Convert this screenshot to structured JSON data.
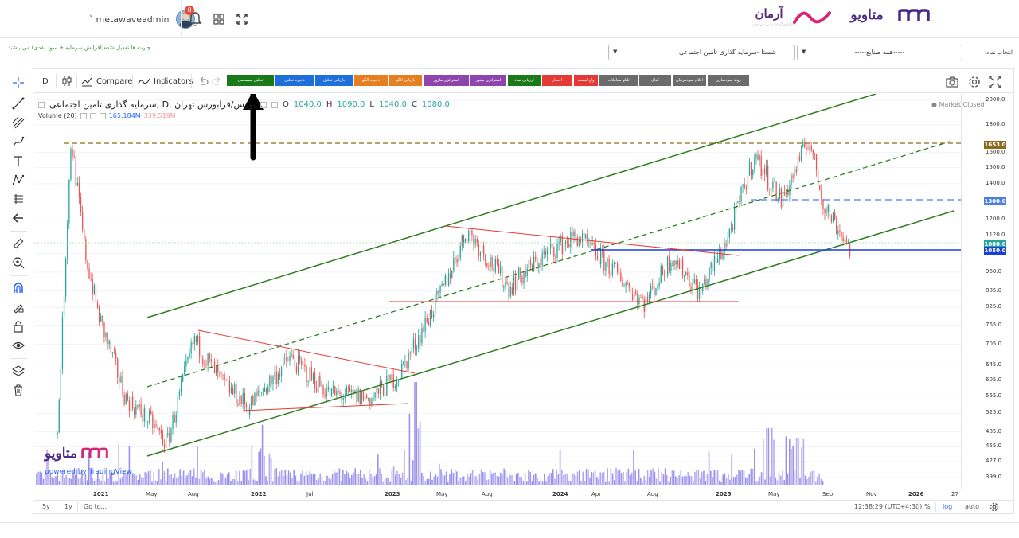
{
  "header": {
    "username": "metawaveadmin",
    "notification_count": "0",
    "brand_armaan": "آرمان",
    "brand_armaan_sub": "کارگزاری آرمان تدبیر نقش جهان",
    "brand_metaweave": "متاویو"
  },
  "subheader": {
    "note": "چارت ها تعدیل شده(افزایش سرمایه + سود نقدی) می باشند",
    "select_label": "انتخاب نماد:",
    "industry_value": "-----همه صنایع-----",
    "symbol_value": "شستا -سرمایه گذاری تامین اجتماعی"
  },
  "toolbar": {
    "interval": "D",
    "compare": "Compare",
    "indicators": "Indicators",
    "custom_buttons": [
      {
        "label": "تحلیل سیستمی",
        "color": "#1a7a1a"
      },
      {
        "label": "ذخیره تحلیل",
        "color": "#1e6fd9"
      },
      {
        "label": "بازیابی تحلیل",
        "color": "#1e6fd9"
      },
      {
        "label": "ذخیره الگو",
        "color": "#e67e22"
      },
      {
        "label": "بازیابی الگو",
        "color": "#e67e22"
      },
      {
        "label": "استراتژی ماژور",
        "color": "#8e44ad"
      },
      {
        "label": "استراتژی مینور",
        "color": "#8e44ad"
      },
      {
        "label": "ارزیابی نماد",
        "color": "#1a7a1a"
      },
      {
        "label": "اخطار",
        "color": "#e53935"
      },
      {
        "label": "واچ لیست",
        "color": "#e53935"
      },
      {
        "label": "تابلو معاملات",
        "color": "#6b6b6b"
      },
      {
        "label": "کدال",
        "color": "#6b6b6b"
      },
      {
        "label": "اقلام سودمرتبان",
        "color": "#6b6b6b"
      },
      {
        "label": "روند سودسازی",
        "color": "#6b6b6b"
      }
    ]
  },
  "legend": {
    "title": "سرمایه گذاری تامین اجتماعی, D, بورس/فرابورس تهران",
    "open_label": "O",
    "open": "1040.0",
    "high_label": "H",
    "high": "1090.0",
    "low_label": "L",
    "low": "1040.0",
    "close_label": "C",
    "close": "1080.0",
    "volume_label": "Volume (20)",
    "volume_value": "165.184M",
    "volume_ma": "339.519M",
    "market_status": "Market Closed"
  },
  "watermark": {
    "logo": "متاویو",
    "powered": "powered by TradingView"
  },
  "bottom_bar": {
    "range_5y": "5y",
    "range_1y": "1y",
    "goto": "Go to...",
    "clock": "12:38:29 (UTC+4:30)",
    "percent": "%",
    "log": "log",
    "auto": "auto"
  },
  "colors": {
    "up": "#26a69a",
    "down": "#ef5350",
    "channel": "#2e7d1f",
    "resistance": "#e53935",
    "support_blue": "#1a3fd6",
    "badge_brown": "#8a6d1b",
    "badge_blue": "#4a7fe0",
    "badge_green": "#26a69a",
    "badge_navy": "#1a3fd6"
  },
  "chart_data": {
    "type": "candlestick",
    "interval": "D",
    "symbol": "شستا",
    "scale": "log",
    "price_ticks": [
      "2000.0",
      "1800.0",
      "1600.0",
      "1500.0",
      "1400.0",
      "1300.0",
      "1200.0",
      "1120.0",
      "1040.0",
      "960.0",
      "885.0",
      "825.0",
      "765.0",
      "705.0",
      "645.0",
      "605.0",
      "565.0",
      "525.0",
      "485.0",
      "455.0",
      "427.0",
      "399.0"
    ],
    "price_badges": [
      {
        "value": "1653.0",
        "color": "#8a6d1b"
      },
      {
        "value": "1300.0",
        "color": "#4a7fe0"
      },
      {
        "value": "1080.0",
        "color": "#26a69a"
      },
      {
        "value": "1050.0",
        "color": "#1a3fd6"
      }
    ],
    "time_ticks": [
      "2021",
      "May",
      "Aug",
      "2022",
      "Jul",
      "2023",
      "May",
      "Aug",
      "2024",
      "Apr",
      "Aug",
      "2025",
      "May",
      "Sep",
      "Nov",
      "2026",
      "27"
    ],
    "ohlc_last": {
      "open": 1040.0,
      "high": 1090.0,
      "low": 1040.0,
      "close": 1080.0
    },
    "price_path": [
      {
        "date": "2020-10",
        "price": 480
      },
      {
        "date": "2020-11",
        "price": 1700
      },
      {
        "date": "2020-12",
        "price": 1050
      },
      {
        "date": "2021-01",
        "price": 800
      },
      {
        "date": "2021-03",
        "price": 560
      },
      {
        "date": "2021-05",
        "price": 500
      },
      {
        "date": "2021-06",
        "price": 460
      },
      {
        "date": "2021-08",
        "price": 720
      },
      {
        "date": "2021-10",
        "price": 600
      },
      {
        "date": "2021-12",
        "price": 540
      },
      {
        "date": "2022-03",
        "price": 665
      },
      {
        "date": "2022-06",
        "price": 570
      },
      {
        "date": "2022-09",
        "price": 560
      },
      {
        "date": "2022-11",
        "price": 620
      },
      {
        "date": "2023-02",
        "price": 870
      },
      {
        "date": "2023-04",
        "price": 1150
      },
      {
        "date": "2023-07",
        "price": 900
      },
      {
        "date": "2023-10",
        "price": 1050
      },
      {
        "date": "2023-12",
        "price": 1120
      },
      {
        "date": "2024-03",
        "price": 950
      },
      {
        "date": "2024-05",
        "price": 840
      },
      {
        "date": "2024-07",
        "price": 1030
      },
      {
        "date": "2024-09",
        "price": 880
      },
      {
        "date": "2024-11",
        "price": 1100
      },
      {
        "date": "2025-01",
        "price": 1580
      },
      {
        "date": "2025-03",
        "price": 1300
      },
      {
        "date": "2025-05",
        "price": 1700
      },
      {
        "date": "2025-06",
        "price": 1300
      },
      {
        "date": "2025-08",
        "price": 1060
      }
    ]
  }
}
